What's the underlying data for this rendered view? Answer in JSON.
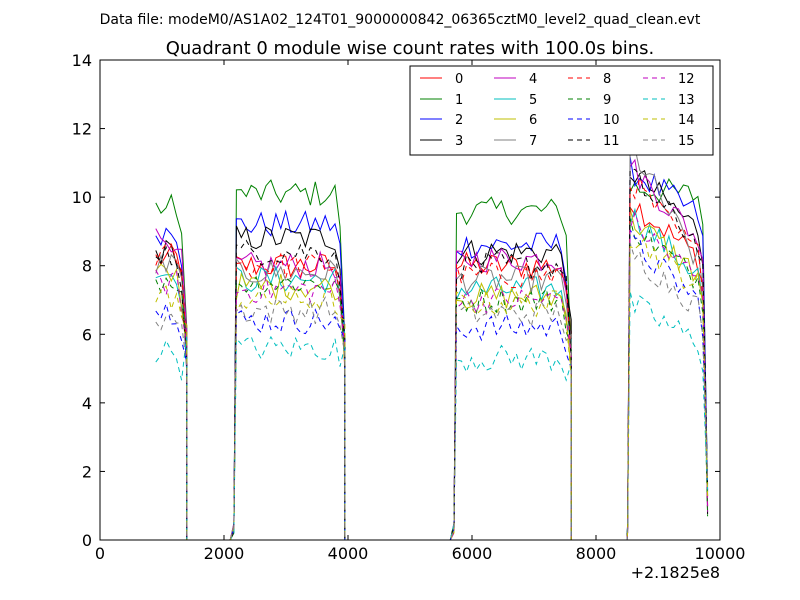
{
  "chart_data": {
    "type": "line",
    "suptitle": "Data file: modeM0/AS1A02_124T01_9000000842_06365cztM0_level2_quad_clean.evt",
    "title": "Quadrant 0 module wise count rates with 100.0s bins.",
    "xlabel": "",
    "ylabel": "",
    "x_offset_label": "+2.1825e8",
    "xlim": [
      0,
      10000
    ],
    "ylim": [
      0,
      14
    ],
    "xticks": [
      "0",
      "2000",
      "4000",
      "6000",
      "8000",
      "10000"
    ],
    "yticks": [
      "0",
      "2",
      "4",
      "6",
      "8",
      "10",
      "12",
      "14"
    ],
    "legend_position": "top-right",
    "segments": [
      {
        "x_start": 900,
        "x_end": 1400,
        "zero_points": [
          1400,
          1600,
          1800,
          2000,
          2100
        ]
      },
      {
        "x_start": 2200,
        "x_end": 3950,
        "zero_points": [
          3950,
          4300,
          4800,
          5300,
          5650
        ]
      },
      {
        "x_start": 5750,
        "x_end": 7600,
        "zero_points": [
          7600,
          7900,
          8200,
          8500
        ]
      },
      {
        "x_start": 8550,
        "x_end": 9800,
        "zero_points": []
      }
    ],
    "series": [
      {
        "name": "0",
        "color": "#ff0000",
        "dash": "solid",
        "levels": [
          8.2,
          8.0,
          8.0,
          9.9,
          8.0
        ]
      },
      {
        "name": "1",
        "color": "#008000",
        "dash": "solid",
        "levels": [
          9.7,
          10.1,
          9.6,
          10.3,
          10.0
        ]
      },
      {
        "name": "2",
        "color": "#0000ff",
        "dash": "solid",
        "levels": [
          9.0,
          9.2,
          8.6,
          10.8,
          9.3
        ]
      },
      {
        "name": "3",
        "color": "#000000",
        "dash": "solid",
        "levels": [
          8.4,
          8.8,
          8.4,
          10.8,
          8.8
        ]
      },
      {
        "name": "4",
        "color": "#bf00bf",
        "dash": "solid",
        "levels": [
          8.8,
          8.0,
          8.2,
          10.9,
          8.5
        ]
      },
      {
        "name": "5",
        "color": "#00bfbf",
        "dash": "solid",
        "levels": [
          7.8,
          7.6,
          7.3,
          9.5,
          7.5
        ]
      },
      {
        "name": "6",
        "color": "#bfbf00",
        "dash": "solid",
        "levels": [
          7.7,
          7.4,
          7.1,
          9.4,
          7.5
        ]
      },
      {
        "name": "7",
        "color": "#808080",
        "dash": "solid",
        "levels": [
          8.0,
          7.8,
          7.6,
          11.5,
          7.6
        ]
      },
      {
        "name": "8",
        "color": "#ff0000",
        "dash": "dashed",
        "levels": [
          8.3,
          8.0,
          7.7,
          10.5,
          8.0
        ]
      },
      {
        "name": "9",
        "color": "#008000",
        "dash": "dashed",
        "levels": [
          7.6,
          7.5,
          7.0,
          9.2,
          7.4
        ]
      },
      {
        "name": "10",
        "color": "#0000ff",
        "dash": "dashed",
        "levels": [
          6.7,
          6.4,
          6.2,
          8.7,
          6.7
        ]
      },
      {
        "name": "11",
        "color": "#000000",
        "dash": "dashed",
        "levels": [
          8.2,
          8.4,
          8.0,
          10.6,
          8.4
        ]
      },
      {
        "name": "12",
        "color": "#bf00bf",
        "dash": "dashed",
        "levels": [
          7.5,
          7.3,
          7.0,
          9.3,
          7.4
        ]
      },
      {
        "name": "13",
        "color": "#00bfbf",
        "dash": "dashed",
        "levels": [
          5.5,
          5.6,
          5.3,
          6.9,
          5.6
        ]
      },
      {
        "name": "14",
        "color": "#bfbf00",
        "dash": "dashed",
        "levels": [
          7.1,
          7.0,
          6.9,
          8.9,
          7.2
        ]
      },
      {
        "name": "15",
        "color": "#808080",
        "dash": "dashed",
        "levels": [
          6.5,
          6.7,
          6.6,
          8.4,
          6.6
        ]
      }
    ]
  }
}
